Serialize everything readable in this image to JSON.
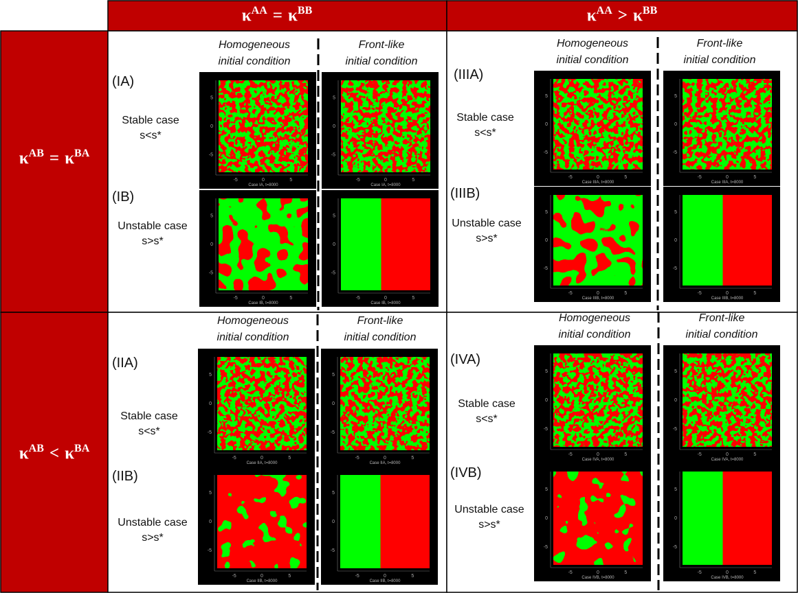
{
  "col_headers": [
    {
      "lhs": {
        "base": "κ",
        "sup": "AA"
      },
      "op": "=",
      "rhs": {
        "base": "κ",
        "sup": "BB"
      }
    },
    {
      "lhs": {
        "base": "κ",
        "sup": "AA"
      },
      "op": ">",
      "rhs": {
        "base": "κ",
        "sup": "BB"
      }
    }
  ],
  "row_headers": [
    {
      "lhs": {
        "base": "κ",
        "sup": "AB"
      },
      "op": "=",
      "rhs": {
        "base": "κ",
        "sup": "BA"
      }
    },
    {
      "lhs": {
        "base": "κ",
        "sup": "AB"
      },
      "op": "<",
      "rhs": {
        "base": "κ",
        "sup": "BA"
      }
    }
  ],
  "column_captions": [
    {
      "line1": "Homogeneous",
      "line2": "initial condition"
    },
    {
      "line1": "Front-like",
      "line2": "initial condition"
    }
  ],
  "plot_axes": {
    "xticks": [
      -5,
      0,
      5
    ],
    "yticks": [
      5,
      0,
      -5
    ]
  },
  "panels": [
    {
      "rows": [
        {
          "label": "(IA)",
          "case": "Stable case",
          "condition": "s<s*",
          "captions": [
            "Case IA, t=8000",
            "Case IA, t=8000"
          ]
        },
        {
          "label": "(IB)",
          "case": "Unstable case",
          "condition": "s>s*",
          "captions": [
            "Case IB, t=8000",
            "Case IB, t=8000"
          ]
        }
      ]
    },
    {
      "rows": [
        {
          "label": "(IIIA)",
          "case": "Stable case",
          "condition": "s<s*",
          "captions": [
            "Case IIIA, t=8000",
            "Case IIIA, t=8000"
          ]
        },
        {
          "label": "(IIIB)",
          "case": "Unstable case",
          "condition": "s>s*",
          "captions": [
            "Case IIIB, t=8000",
            "Case IIIB, t=8000"
          ]
        }
      ]
    },
    {
      "rows": [
        {
          "label": "(IIA)",
          "case": "Stable case",
          "condition": "s<s*",
          "captions": [
            "Case IIA, t=8000",
            "Case IIA, t=8000"
          ]
        },
        {
          "label": "(IIB)",
          "case": "Unstable case",
          "condition": "s>s*",
          "captions": [
            "Case IIB, t=8000",
            "Case IIB, t=8000"
          ]
        }
      ]
    },
    {
      "rows": [
        {
          "label": "(IVA)",
          "case": "Stable case",
          "condition": "s<s*",
          "captions": [
            "Case IVA, t=8000",
            "Case IVA, t=8000"
          ]
        },
        {
          "label": "(IVB)",
          "case": "Unstable case",
          "condition": "s>s*",
          "captions": [
            "Case IVB, t=8000",
            "Case IVB, t=8000"
          ]
        }
      ]
    }
  ]
}
